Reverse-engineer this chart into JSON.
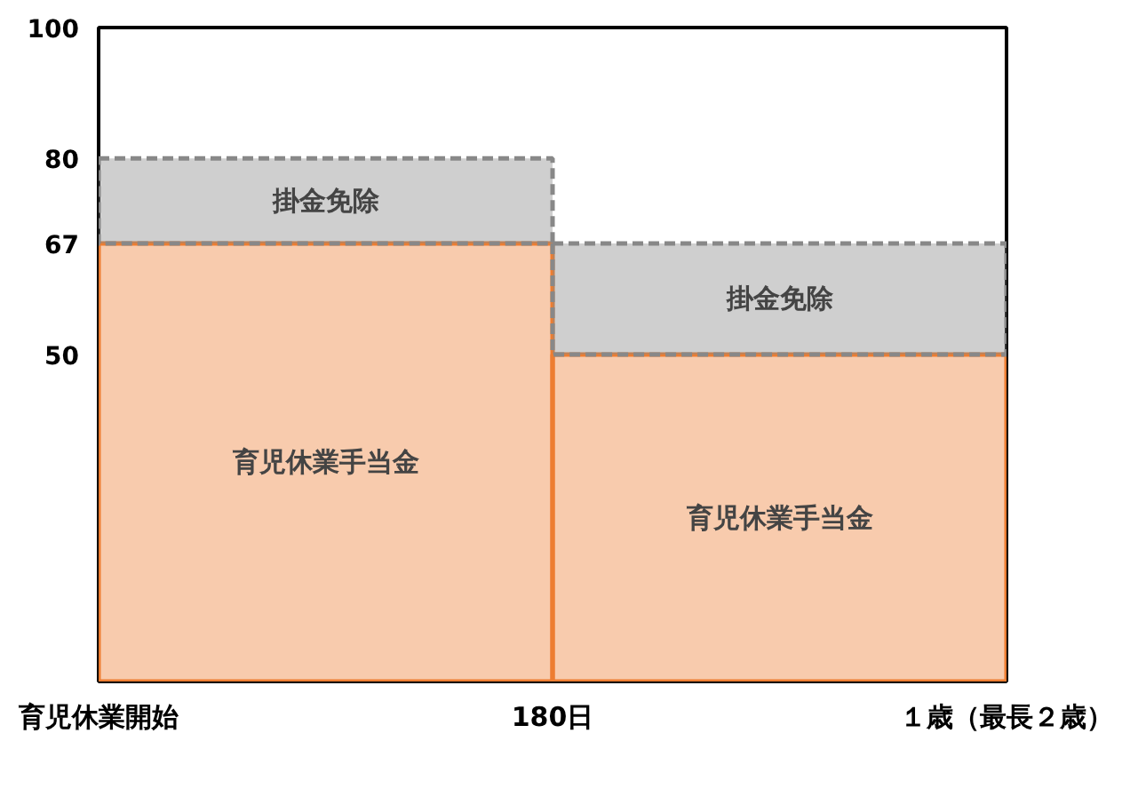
{
  "chart_data": {
    "type": "bar",
    "stacked": true,
    "categories": [
      null,
      null
    ],
    "series": [
      {
        "name": "育児休業手当金",
        "color": "#ed7d31",
        "line_style": "solid",
        "values": [
          67,
          50
        ]
      },
      {
        "name": "掛金免除",
        "color": "#888888",
        "line_style": "dashed",
        "values": [
          13,
          17
        ]
      }
    ],
    "annotations": [
      "育児休業開始",
      "180日",
      "１歳（最長２歳）"
    ],
    "ylim": [
      0,
      100
    ],
    "yticks": [
      50,
      67,
      80,
      100
    ],
    "grid": false
  }
}
